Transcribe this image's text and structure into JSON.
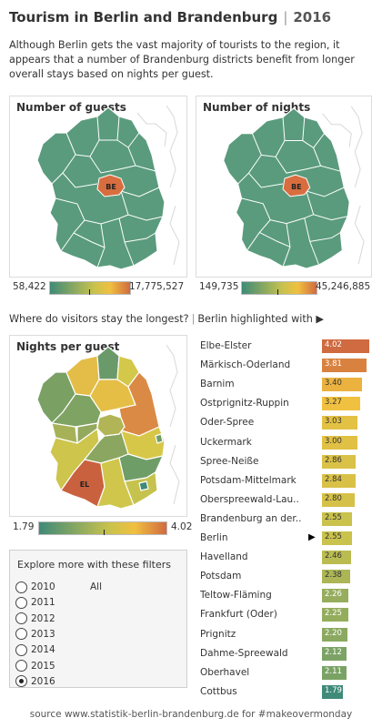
{
  "header": {
    "title": "Tourism in Berlin and Brandenburg",
    "separator": "|",
    "year": "2016",
    "subtitle": "Although Berlin gets the vast majority of tourists to the region, it appears that a number of Brandenburg districts benefit from longer overall stays based on nights per guest."
  },
  "maps": {
    "guests": {
      "title": "Number of guests",
      "label": "BE",
      "legend_min": "58,422",
      "legend_max": "17,775,527"
    },
    "nights": {
      "title": "Number of nights",
      "label": "BE",
      "legend_min": "149,735",
      "legend_max": "45,246,885"
    },
    "per_guest": {
      "title": "Nights per guest",
      "label": "EL",
      "legend_min": "1.79",
      "legend_max": "4.02"
    }
  },
  "colors": {
    "base_green": "#5a9b7d",
    "berlin_orange": "#d86e3f",
    "border_gray": "#dcdcdc"
  },
  "section": {
    "question": "Where do visitors stay the longest?",
    "separator": "|",
    "highlight_note": "Berlin highlighted with ▶"
  },
  "filters": {
    "title": "Explore more with these filters",
    "all_label": "All",
    "years": [
      {
        "label": "2010",
        "selected": false
      },
      {
        "label": "2011",
        "selected": false
      },
      {
        "label": "2012",
        "selected": false
      },
      {
        "label": "2013",
        "selected": false
      },
      {
        "label": "2014",
        "selected": false
      },
      {
        "label": "2015",
        "selected": false
      },
      {
        "label": "2016",
        "selected": true
      }
    ]
  },
  "chart_data": {
    "type": "bar",
    "title": "Nights per guest",
    "categories": [
      "Elbe-Elster",
      "Märkisch-Oderland",
      "Barnim",
      "Ostprignitz-Ruppin",
      "Oder-Spree",
      "Uckermark",
      "Spree-Neiße",
      "Potsdam-Mittelmark",
      "Oberspreewald-Lau..",
      "Brandenburg an der..",
      "Berlin",
      "Havelland",
      "Potsdam",
      "Teltow-Fläming",
      "Frankfurt (Oder)",
      "Prignitz",
      "Dahme-Spreewald",
      "Oberhavel",
      "Cottbus"
    ],
    "values": [
      4.02,
      3.81,
      3.4,
      3.27,
      3.03,
      3.0,
      2.86,
      2.84,
      2.8,
      2.55,
      2.55,
      2.46,
      2.38,
      2.26,
      2.25,
      2.2,
      2.12,
      2.11,
      1.79
    ],
    "value_labels": [
      "4.02",
      "3.81",
      "3.40",
      "3.27",
      "3.03",
      "3.00",
      "2.86",
      "2.84",
      "2.80",
      "2.55",
      "2.55",
      "2.46",
      "2.38",
      "2.26",
      "2.25",
      "2.20",
      "2.12",
      "2.11",
      "1.79"
    ],
    "highlight": "Berlin",
    "highlight_marker": "▶",
    "range": [
      1.79,
      4.02
    ],
    "color_scale": [
      "#3f8a78",
      "#c8c24d",
      "#f0c040",
      "#d06a40"
    ]
  },
  "footer": {
    "source": "source www.statistik-berlin-brandenburg.de for #makeovermonday"
  }
}
